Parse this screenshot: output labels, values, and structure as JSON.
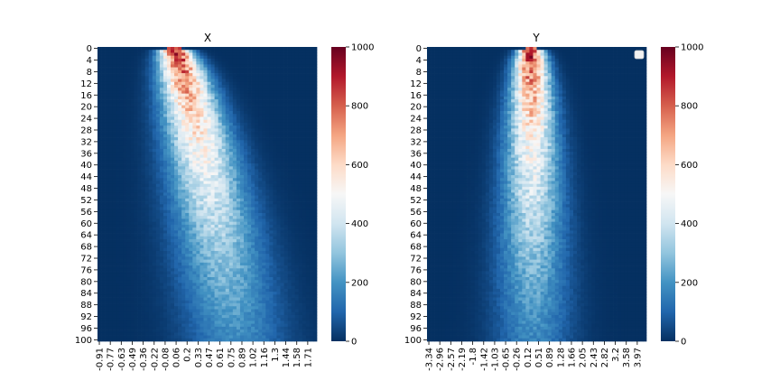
{
  "chart_data": [
    {
      "type": "heatmap",
      "title": "X",
      "xlabel": "",
      "ylabel": "",
      "y_ticks": [
        "0",
        "4",
        "8",
        "12",
        "16",
        "20",
        "24",
        "28",
        "32",
        "36",
        "40",
        "44",
        "48",
        "52",
        "56",
        "60",
        "64",
        "68",
        "72",
        "76",
        "80",
        "84",
        "88",
        "92",
        "96",
        "100"
      ],
      "x_ticks": [
        "-0.91",
        "-0.77",
        "-0.63",
        "-0.49",
        "-0.36",
        "-0.22",
        "-0.08",
        "0.06",
        "0.2",
        "0.33",
        "0.47",
        "0.61",
        "0.75",
        "0.89",
        "1.02",
        "1.16",
        "1.3",
        "1.44",
        "1.58",
        "1.71"
      ],
      "rows": 101,
      "cols": 60,
      "colorbar": {
        "min": 0,
        "max": 1000,
        "ticks": [
          0,
          200,
          400,
          600,
          800,
          1000
        ],
        "cmap": "RdBu_r"
      },
      "ridge": {
        "x_start": 0.0,
        "x_end": 0.75,
        "peak_start": 1000,
        "peak_end": 180
      }
    },
    {
      "type": "heatmap",
      "title": "Y",
      "xlabel": "",
      "ylabel": "",
      "y_ticks": [
        "0",
        "4",
        "8",
        "12",
        "16",
        "20",
        "24",
        "28",
        "32",
        "36",
        "40",
        "44",
        "48",
        "52",
        "56",
        "60",
        "64",
        "68",
        "72",
        "76",
        "80",
        "84",
        "88",
        "92",
        "96",
        "100"
      ],
      "x_ticks": [
        "-3.34",
        "-2.96",
        "-2.57",
        "-2.19",
        "-1.8",
        "-1.42",
        "-1.03",
        "-0.65",
        "-0.26",
        "0.12",
        "0.51",
        "0.89",
        "1.28",
        "1.66",
        "2.05",
        "2.43",
        "2.82",
        "3.2",
        "3.58",
        "3.97"
      ],
      "rows": 101,
      "cols": 60,
      "colorbar": {
        "min": 0,
        "max": 1000,
        "ticks": [
          0,
          200,
          400,
          600,
          800,
          1000
        ],
        "cmap": "RdBu_r"
      },
      "ridge": {
        "x_start": 0.12,
        "x_end": 0.2,
        "peak_start": 1000,
        "peak_end": 170
      },
      "legend": {
        "placement": "top-right",
        "entries": []
      }
    }
  ]
}
